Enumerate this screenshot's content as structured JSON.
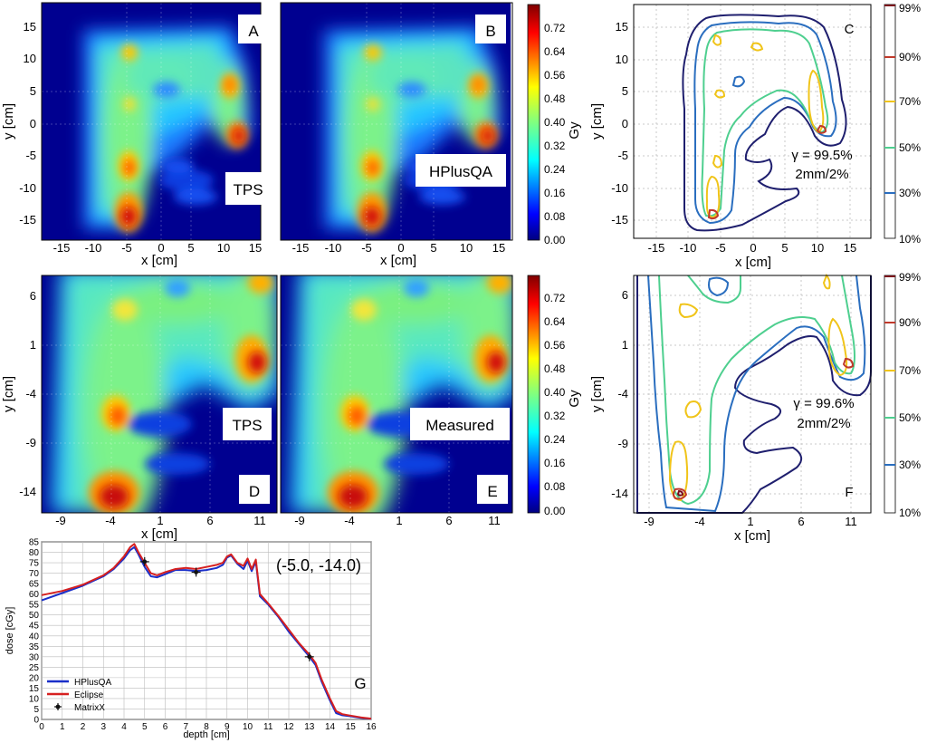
{
  "colors": {
    "jet": [
      "#000080",
      "#0000ff",
      "#0080ff",
      "#00ffff",
      "#80ff80",
      "#ffff00",
      "#ff8000",
      "#ff0000",
      "#800000"
    ],
    "iso": [
      "#1f1f6e",
      "#2a6ebf",
      "#4ecf8f",
      "#f0c419",
      "#c0392b",
      "#7a0d1a"
    ],
    "hplusqa": "#1a2fc9",
    "eclipse": "#d62020",
    "matrixx": "#111111",
    "grid": "#bbbbbb"
  },
  "colorbars": {
    "dose": {
      "unit": "Gy",
      "ticks": [
        "0.72",
        "0.64",
        "0.56",
        "0.48",
        "0.40",
        "0.32",
        "0.24",
        "0.16",
        "0.08",
        "0.00"
      ]
    },
    "isodose": {
      "ticks": [
        "99%",
        "90%",
        "70%",
        "50%",
        "30%",
        "10%"
      ]
    }
  },
  "panels": {
    "A": {
      "letter": "A",
      "label": "TPS"
    },
    "B": {
      "letter": "B",
      "label": "HPlusQA"
    },
    "C": {
      "letter": "C",
      "gamma": "γ = 99.5%",
      "criteria": "2mm/2%"
    },
    "D": {
      "letter": "D",
      "label": "TPS"
    },
    "E": {
      "letter": "E",
      "label": "Measured"
    },
    "F": {
      "letter": "F",
      "gamma": "γ = 99.6%",
      "criteria": "2mm/2%"
    },
    "G": {
      "letter": "G",
      "point": "(-5.0, -14.0)"
    }
  },
  "axes": {
    "row1": {
      "xlabel": "x [cm]",
      "ylabel": "y [cm]",
      "xticks": [
        "-15",
        "-10",
        "-5",
        "0",
        "5",
        "10",
        "15"
      ],
      "yticks": [
        "15",
        "10",
        "5",
        "0",
        "-5",
        "-10",
        "-15"
      ]
    },
    "row2": {
      "xlabel": "x [cm]",
      "ylabel": "y [cm]",
      "xticks": [
        "-9",
        "-4",
        "1",
        "6",
        "11"
      ],
      "yticks": [
        "6",
        "1",
        "-4",
        "-9",
        "-14"
      ]
    }
  },
  "chart_data": [
    {
      "type": "heatmap",
      "panel": "A",
      "title": "TPS",
      "xlabel": "x [cm]",
      "ylabel": "y [cm]",
      "xlim": [
        -18,
        18
      ],
      "ylim": [
        -18,
        18
      ],
      "colorbar_label": "Gy",
      "crange": [
        0.0,
        0.78
      ],
      "hotspots": [
        {
          "x": -5.7,
          "y": -14,
          "dose": 0.72
        },
        {
          "x": -5.7,
          "y": -6,
          "dose": 0.64
        },
        {
          "x": -5.5,
          "y": 13,
          "dose": 0.6
        },
        {
          "x": -5.5,
          "y": 4.8,
          "dose": 0.5
        },
        {
          "x": 9.8,
          "y": 8,
          "dose": 0.62
        },
        {
          "x": 11,
          "y": -1,
          "dose": 0.74
        }
      ]
    },
    {
      "type": "heatmap",
      "panel": "B",
      "title": "HPlusQA",
      "xlabel": "x [cm]",
      "ylabel": "",
      "xlim": [
        -18,
        18
      ],
      "ylim": [
        -18,
        18
      ],
      "colorbar_label": "Gy",
      "crange": [
        0.0,
        0.78
      ],
      "hotspots": [
        {
          "x": -5.7,
          "y": -14,
          "dose": 0.72
        },
        {
          "x": -5.7,
          "y": -6,
          "dose": 0.64
        },
        {
          "x": -5.5,
          "y": 13,
          "dose": 0.6
        },
        {
          "x": -5.5,
          "y": 4.8,
          "dose": 0.5
        },
        {
          "x": 9.8,
          "y": 8,
          "dose": 0.62
        },
        {
          "x": 11,
          "y": -1,
          "dose": 0.74
        }
      ]
    },
    {
      "type": "contour",
      "panel": "C",
      "xlabel": "x [cm]",
      "ylabel": "y [cm]",
      "xlim": [
        -18,
        18
      ],
      "ylim": [
        -18,
        18
      ],
      "levels": [
        "10%",
        "30%",
        "50%",
        "70%",
        "90%",
        "99%"
      ],
      "gamma_pass": 99.5,
      "criteria": "2mm/2%"
    },
    {
      "type": "heatmap",
      "panel": "D",
      "title": "TPS",
      "xlabel": "x [cm]",
      "ylabel": "y [cm]",
      "xlim": [
        -11,
        13
      ],
      "ylim": [
        -15.5,
        8
      ],
      "colorbar_label": "Gy",
      "crange": [
        0.0,
        0.78
      ]
    },
    {
      "type": "heatmap",
      "panel": "E",
      "title": "Measured",
      "xlabel": "x [cm]",
      "ylabel": "",
      "xlim": [
        -11,
        13
      ],
      "ylim": [
        -15.5,
        8
      ],
      "colorbar_label": "Gy",
      "crange": [
        0.0,
        0.78
      ]
    },
    {
      "type": "contour",
      "panel": "F",
      "xlabel": "x [cm]",
      "ylabel": "y [cm]",
      "xlim": [
        -11,
        13
      ],
      "ylim": [
        -15.5,
        8
      ],
      "levels": [
        "10%",
        "30%",
        "50%",
        "70%",
        "90%",
        "99%"
      ],
      "gamma_pass": 99.6,
      "criteria": "2mm/2%"
    },
    {
      "type": "line",
      "panel": "G",
      "title": "(-5.0, -14.0)",
      "xlabel": "depth [cm]",
      "ylabel": "dose [cGy]",
      "xlim": [
        0,
        16
      ],
      "ylim": [
        0,
        85
      ],
      "xticks": [
        0,
        1,
        2,
        3,
        4,
        5,
        6,
        7,
        8,
        9,
        10,
        11,
        12,
        13,
        14,
        15,
        16
      ],
      "yticks": [
        0,
        5,
        10,
        15,
        20,
        25,
        30,
        35,
        40,
        45,
        50,
        55,
        60,
        65,
        70,
        75,
        80,
        85
      ],
      "legend": "lower-left",
      "series": [
        {
          "name": "HPlusQA",
          "x": [
            0,
            1,
            2,
            3,
            3.5,
            4,
            4.3,
            4.5,
            4.7,
            5,
            5.3,
            5.6,
            6,
            6.5,
            7,
            7.5,
            8,
            8.5,
            8.8,
            9,
            9.2,
            9.5,
            9.8,
            10,
            10.2,
            10.4,
            10.6,
            11,
            11.5,
            12,
            12.5,
            13,
            13.3,
            13.6,
            14,
            14.3,
            14.6,
            15,
            15.5,
            16
          ],
          "y": [
            57,
            60.5,
            64,
            68.5,
            72,
            77,
            81,
            82.5,
            79,
            73,
            68.5,
            68,
            69.5,
            71.5,
            71.5,
            71,
            71.5,
            72.5,
            74,
            77.5,
            78.5,
            74.5,
            72,
            76,
            71,
            75.5,
            59,
            55,
            49,
            42,
            36,
            30,
            26,
            18,
            9,
            3,
            2,
            1.5,
            0.8,
            0.3
          ]
        },
        {
          "name": "Eclipse",
          "x": [
            0,
            1,
            2,
            3,
            3.5,
            4,
            4.3,
            4.5,
            4.7,
            5,
            5.3,
            5.6,
            6,
            6.5,
            7,
            7.5,
            8,
            8.5,
            8.8,
            9,
            9.2,
            9.5,
            9.8,
            10,
            10.2,
            10.4,
            10.6,
            11,
            11.5,
            12,
            12.5,
            13,
            13.3,
            13.6,
            14,
            14.3,
            14.6,
            15,
            15.5,
            16
          ],
          "y": [
            59.5,
            61.5,
            64.5,
            69,
            72.5,
            78,
            82.5,
            84,
            80,
            75,
            70,
            69,
            70.5,
            72,
            72.5,
            72,
            73,
            74,
            75,
            78,
            79,
            75,
            73.5,
            77,
            72,
            76.5,
            60,
            55.5,
            49.5,
            43,
            36.5,
            31,
            27,
            19,
            10,
            4,
            2.5,
            1.8,
            1,
            0.4
          ]
        },
        {
          "name": "MatrixX",
          "x": [
            5,
            7.5,
            13
          ],
          "y": [
            75.5,
            70.5,
            30
          ]
        }
      ]
    }
  ]
}
